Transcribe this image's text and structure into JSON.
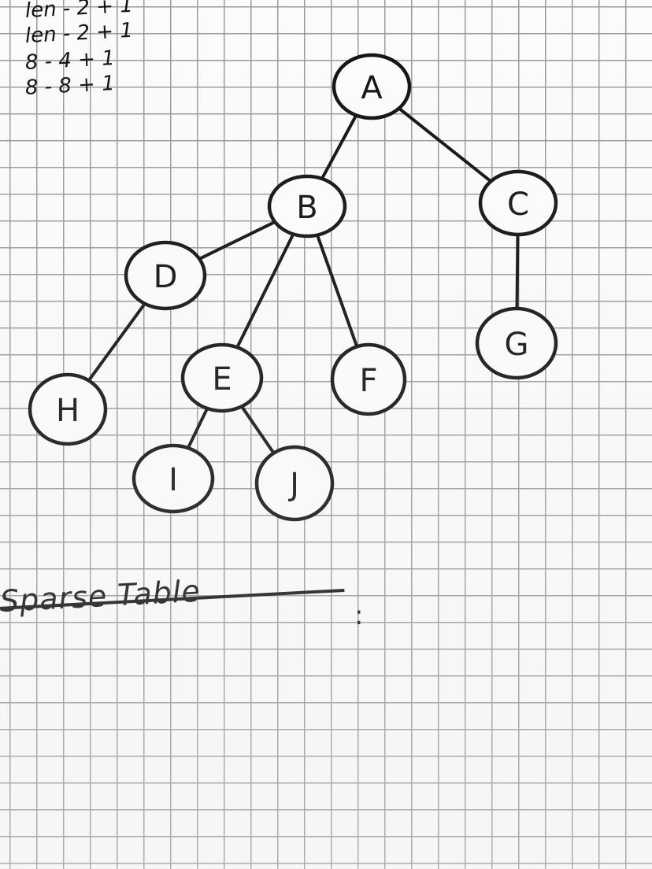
{
  "notes": [
    "len - 2 + 1",
    "len - 2 + 1",
    "8 - 4 + 1",
    "8 - 8 + 1"
  ],
  "tree": {
    "nodes": [
      {
        "id": "A",
        "label": "A"
      },
      {
        "id": "B",
        "label": "B"
      },
      {
        "id": "C",
        "label": "C"
      },
      {
        "id": "D",
        "label": "D"
      },
      {
        "id": "E",
        "label": "E"
      },
      {
        "id": "F",
        "label": "F"
      },
      {
        "id": "G",
        "label": "G"
      },
      {
        "id": "H",
        "label": "H"
      },
      {
        "id": "I",
        "label": "I"
      },
      {
        "id": "J",
        "label": "J"
      }
    ],
    "edges": [
      [
        "A",
        "B"
      ],
      [
        "A",
        "C"
      ],
      [
        "B",
        "D"
      ],
      [
        "B",
        "E"
      ],
      [
        "B",
        "F"
      ],
      [
        "C",
        "G"
      ],
      [
        "D",
        "H"
      ],
      [
        "E",
        "I"
      ],
      [
        "E",
        "J"
      ]
    ]
  },
  "heading": {
    "text": "Sparse Table",
    "colon": ":"
  },
  "colors": {
    "ink": "#111111",
    "grid": "#9a9a9a",
    "paper": "#fbfbfb"
  }
}
